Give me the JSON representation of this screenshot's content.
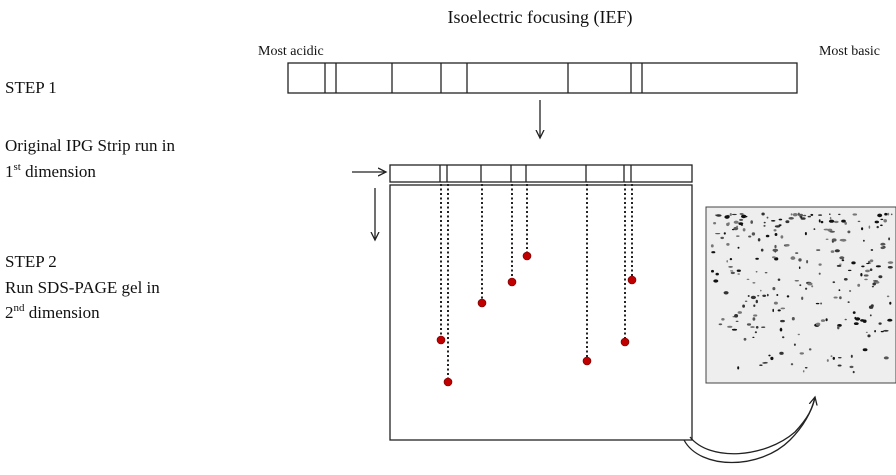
{
  "title": "Isoelectric focusing (IEF)",
  "strip_ends": {
    "left": "Most acidic",
    "right": "Most basic"
  },
  "step1": {
    "label": "STEP 1",
    "line1": "Original  IPG Strip run in",
    "line2": {
      "num": "1",
      "sup": "st",
      "text": " dimension"
    }
  },
  "step2": {
    "label": "STEP 2",
    "line1": "Run SDS-PAGE gel in",
    "line2": {
      "num": "2",
      "sup": "nd",
      "text": " dimension"
    }
  }
}
